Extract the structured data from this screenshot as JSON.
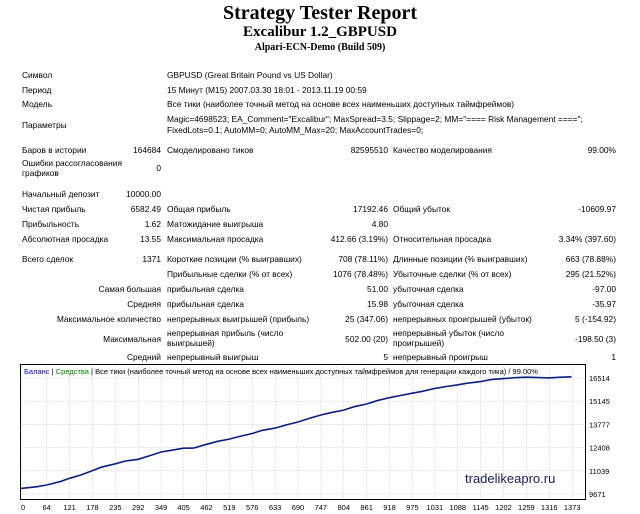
{
  "header": {
    "title": "Strategy Tester Report",
    "subtitle": "Excalibur 1.2_GBPUSD",
    "server": "Alpari-ECN-Demo (Build 509)"
  },
  "info": {
    "symbol_label": "Символ",
    "symbol_value": "GBPUSD (Great Britain Pound vs US Dollar)",
    "period_label": "Период",
    "period_value": "15 Минут (M15) 2007.03.30 18:01 - 2013.11.19 00:59",
    "model_label": "Модель",
    "model_value": "Все тики (наиболее точный метод на основе всех наименьших доступных таймфреймов)",
    "params_label": "Параметры",
    "params_line1": "Magic=4698523; EA_Comment=\"Excalibur\"; MaxSpread=3.5; Slippage=2; MM=\"==== Risk Management ====\";",
    "params_line2": "FixedLots=0.1; AutoMM=0; AutoMM_Max=20; MaxAccountTrades=0;"
  },
  "stats": {
    "bars_label": "Баров в истории",
    "bars_value": "164684",
    "ticks_label": "Смоделировано тиков",
    "ticks_value": "82595510",
    "quality_label": "Качество моделирования",
    "quality_value": "99.00%",
    "errors_label": "Ошибки рассогласования графиков",
    "errors_value": "0",
    "deposit_label": "Начальный депозит",
    "deposit_value": "10000.00",
    "net_label": "Чистая прибыль",
    "net_value": "6582.49",
    "gross_profit_label": "Общая прибыль",
    "gross_profit_value": "17192.46",
    "gross_loss_label": "Общий убыток",
    "gross_loss_value": "-10609.97",
    "pf_label": "Прибыльность",
    "pf_value": "1.62",
    "payoff_label": "Матожидание выигрыша",
    "payoff_value": "4.80",
    "abs_dd_label": "Абсолютная просадка",
    "abs_dd_value": "13.55",
    "max_dd_label": "Максимальная просадка",
    "max_dd_value": "412.66 (3.19%)",
    "rel_dd_label": "Относительная просадка",
    "rel_dd_value": "3.34% (397.60)",
    "trades_label": "Всего сделок",
    "trades_value": "1371",
    "short_label": "Короткие позиции (% выигравших)",
    "short_value": "708 (78.11%)",
    "long_label": "Длинные позиции (% выигравших)",
    "long_value": "663 (78.88%)",
    "profit_trades_label": "Прибыльные сделки (% от всех)",
    "profit_trades_value": "1076 (78.48%)",
    "loss_trades_label": "Убыточные сделки (% от всех)",
    "loss_trades_value": "295 (21.52%)",
    "largest_label": "Самая большая",
    "largest_profit_label": "прибыльная сделка",
    "largest_profit_value": "51.00",
    "largest_loss_label": "убыточная сделка",
    "largest_loss_value": "-97.00",
    "average_label": "Средняя",
    "average_profit_label": "прибыльная сделка",
    "average_profit_value": "15.98",
    "average_loss_label": "убыточная сделка",
    "average_loss_value": "-35.97",
    "max_count_label": "Максимальное количество",
    "cons_wins_label": "непрерывных выигрышей (прибыль)",
    "cons_wins_value": "25 (347.06)",
    "cons_losses_label": "непрерывных проигрышей (убыток)",
    "cons_losses_value": "5 (-154.92)",
    "maximal_label": "Максимальная",
    "cons_profit_label": "непрерывная прибыль (число выигрышей)",
    "cons_profit_value": "502.00 (20)",
    "cons_loss_label": "непрерывный убыток (число проигрышей)",
    "cons_loss_value": "-198.50 (3)",
    "avg_label": "Средний",
    "avg_wins_label": "непрерывный выигрыш",
    "avg_wins_value": "5",
    "avg_losses_label": "непрерывный проигрыш",
    "avg_losses_value": "1"
  },
  "chart_data": {
    "type": "line",
    "legend": {
      "balance": "Баланс",
      "equity": "Средства",
      "description": "Все тики (наиболее точный метод на основе всех наименьших доступных таймфреймов для генерации каждого тика) / 99.00%"
    },
    "x_ticks": [
      0,
      64,
      121,
      178,
      235,
      292,
      349,
      405,
      462,
      519,
      576,
      633,
      690,
      747,
      804,
      861,
      918,
      975,
      1031,
      1088,
      1145,
      1202,
      1259,
      1316,
      1373
    ],
    "y_ticks": [
      9671,
      11039,
      12408,
      13777,
      15145,
      16514
    ],
    "ylim": [
      9671,
      16514
    ],
    "xlim": [
      0,
      1400
    ],
    "watermark": "tradelikeapro.ru",
    "colors": {
      "line": "#0a1f80",
      "grid": "#999999",
      "balance": "#0000cc",
      "equity": "#008000"
    },
    "series": [
      {
        "x": [
          0,
          40,
          64,
          100,
          121,
          150,
          178,
          200,
          235,
          260,
          292,
          320,
          349,
          380,
          405,
          430,
          462,
          490,
          519,
          545,
          576,
          600,
          633,
          660,
          690,
          720,
          747,
          770,
          804,
          830,
          861,
          890,
          918,
          945,
          975,
          1000,
          1031,
          1060,
          1088,
          1110,
          1145,
          1170,
          1202,
          1230,
          1259,
          1290,
          1316,
          1345,
          1371
        ],
        "y": [
          10000,
          10100,
          10200,
          10420,
          10600,
          10800,
          11050,
          11250,
          11450,
          11620,
          11720,
          11930,
          12150,
          12270,
          12370,
          12380,
          12600,
          12780,
          12910,
          13070,
          13240,
          13420,
          13560,
          13740,
          13920,
          14150,
          14330,
          14460,
          14620,
          14820,
          14980,
          15200,
          15350,
          15480,
          15620,
          15730,
          15900,
          16010,
          16110,
          16200,
          16300,
          16420,
          16480,
          16530,
          16560,
          16540,
          16520,
          16560,
          16582
        ]
      }
    ]
  }
}
